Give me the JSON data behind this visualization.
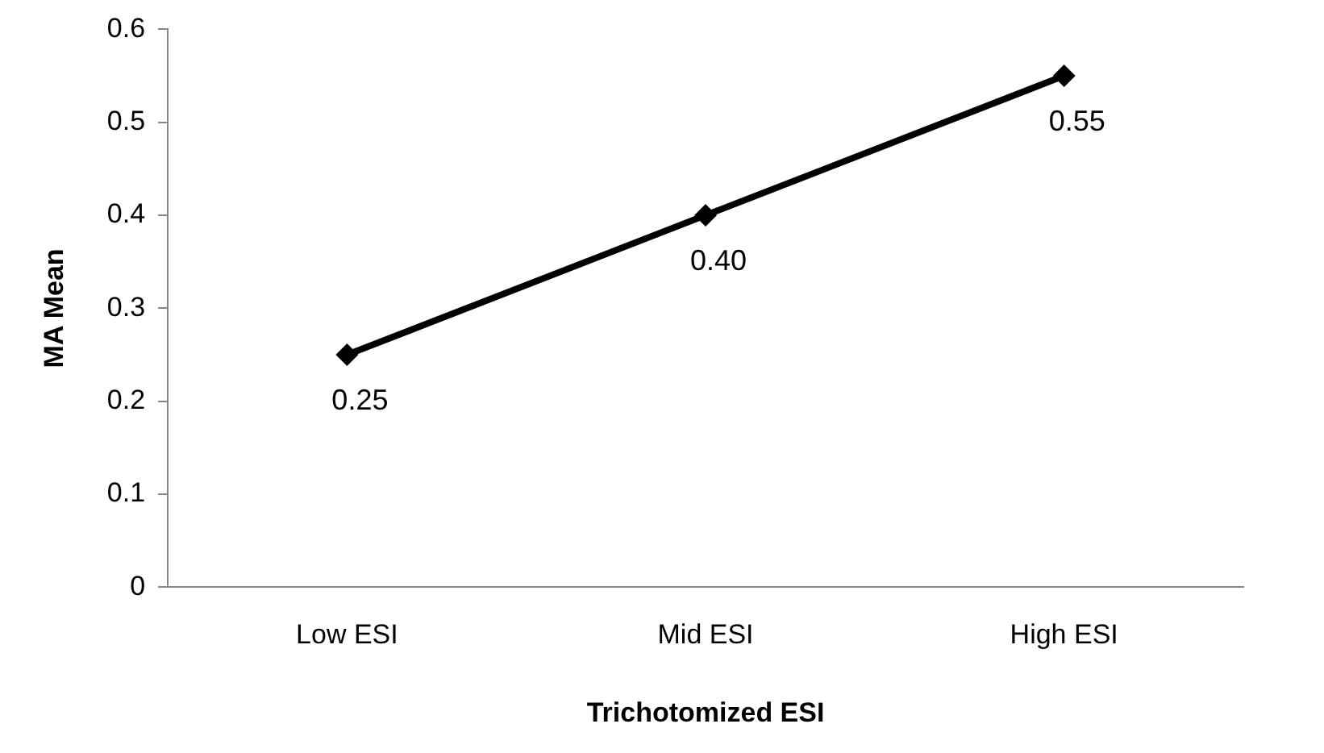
{
  "chart_data": {
    "type": "line",
    "xlabel": "Trichotomized ESI",
    "ylabel": "MA Mean",
    "categories": [
      "Low ESI",
      "Mid ESI",
      "High ESI"
    ],
    "series": [
      {
        "color": "#000000",
        "values": [
          0.25,
          0.4,
          0.55
        ],
        "value_labels": [
          "0.25",
          "0.40",
          "0.55"
        ]
      }
    ],
    "ylim": [
      0,
      0.6
    ],
    "yticks": [
      0,
      0.1,
      0.2,
      0.3,
      0.4,
      0.5,
      0.6
    ],
    "grid": false,
    "legend": false,
    "marker": "diamond",
    "line_style": "solid"
  }
}
